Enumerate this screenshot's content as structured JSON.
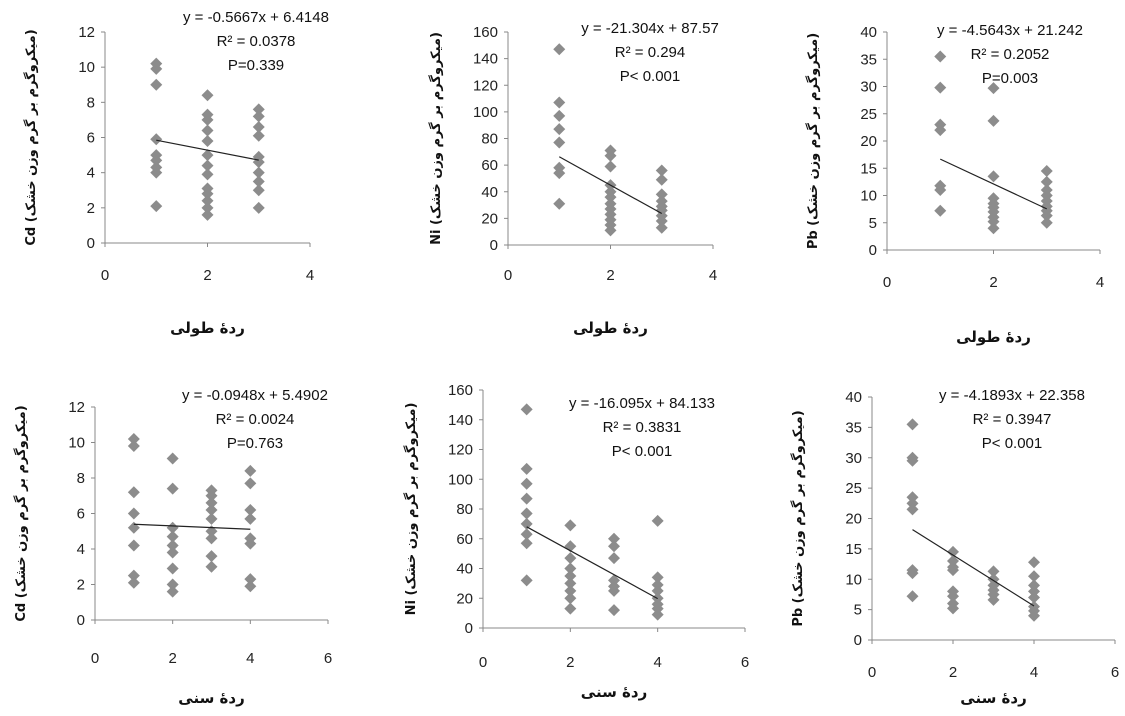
{
  "chart_data": [
    {
      "type": "scatter",
      "ylabel": "Cd (میکروگرم بر گرم وزن خشک)",
      "xlabel": "ردۀ طولی",
      "xlim": [
        0,
        4
      ],
      "xticks": [
        0,
        2,
        4
      ],
      "ylim": [
        0,
        12
      ],
      "yticks": [
        0,
        2,
        4,
        6,
        8,
        10,
        12
      ],
      "equation": "y = -0.5667x + 6.4148",
      "r2_label": "R² = 0.0378",
      "p_label": "P=0.339",
      "trend": {
        "slope": -0.5667,
        "intercept": 6.4148,
        "x_range": [
          1,
          3
        ]
      },
      "points": [
        [
          1,
          10.2
        ],
        [
          1,
          9.9
        ],
        [
          1,
          9.0
        ],
        [
          1,
          5.9
        ],
        [
          1,
          5.0
        ],
        [
          1,
          4.7
        ],
        [
          1,
          4.3
        ],
        [
          1,
          4.0
        ],
        [
          1,
          2.1
        ],
        [
          2,
          8.4
        ],
        [
          2,
          7.3
        ],
        [
          2,
          7.0
        ],
        [
          2,
          6.4
        ],
        [
          2,
          5.8
        ],
        [
          2,
          5.0
        ],
        [
          2,
          4.4
        ],
        [
          2,
          3.9
        ],
        [
          2,
          3.1
        ],
        [
          2,
          2.8
        ],
        [
          2,
          2.4
        ],
        [
          2,
          2.0
        ],
        [
          2,
          1.6
        ],
        [
          3,
          7.6
        ],
        [
          3,
          7.2
        ],
        [
          3,
          6.6
        ],
        [
          3,
          6.1
        ],
        [
          3,
          4.9
        ],
        [
          3,
          4.6
        ],
        [
          3,
          4.0
        ],
        [
          3,
          3.5
        ],
        [
          3,
          3.0
        ],
        [
          3,
          2.0
        ]
      ]
    },
    {
      "type": "scatter",
      "ylabel": "Ni (میکروگرم بر گرم وزن خشک)",
      "xlabel": "ردۀ طولی",
      "xlim": [
        0,
        4
      ],
      "xticks": [
        0,
        2,
        4
      ],
      "ylim": [
        0,
        160
      ],
      "yticks": [
        0,
        20,
        40,
        60,
        80,
        100,
        120,
        140,
        160
      ],
      "equation": "y = -21.304x + 87.57",
      "r2_label": "R² = 0.294",
      "p_label": "P< 0.001",
      "trend": {
        "slope": -21.304,
        "intercept": 87.57,
        "x_range": [
          1,
          3
        ]
      },
      "points": [
        [
          1,
          147
        ],
        [
          1,
          107
        ],
        [
          1,
          97
        ],
        [
          1,
          87
        ],
        [
          1,
          77
        ],
        [
          1,
          58
        ],
        [
          1,
          54
        ],
        [
          1,
          31
        ],
        [
          2,
          71
        ],
        [
          2,
          67
        ],
        [
          2,
          59
        ],
        [
          2,
          45
        ],
        [
          2,
          40
        ],
        [
          2,
          36
        ],
        [
          2,
          31
        ],
        [
          2,
          27
        ],
        [
          2,
          23
        ],
        [
          2,
          19
        ],
        [
          2,
          15
        ],
        [
          2,
          11
        ],
        [
          3,
          56
        ],
        [
          3,
          49
        ],
        [
          3,
          38
        ],
        [
          3,
          33
        ],
        [
          3,
          29
        ],
        [
          3,
          26
        ],
        [
          3,
          22
        ],
        [
          3,
          18
        ],
        [
          3,
          13
        ]
      ]
    },
    {
      "type": "scatter",
      "ylabel": "Pb (میکروگرم بر گرم وزن خشک)",
      "xlabel": "ردۀ طولی",
      "xlim": [
        0,
        4
      ],
      "xticks": [
        0,
        2,
        4
      ],
      "ylim": [
        0,
        40
      ],
      "yticks": [
        0,
        5,
        10,
        15,
        20,
        25,
        30,
        35,
        40
      ],
      "equation": "y = -4.5643x + 21.242",
      "r2_label": "R² = 0.2052",
      "p_label": "P=0.003",
      "trend": {
        "slope": -4.5643,
        "intercept": 21.242,
        "x_range": [
          1,
          3
        ]
      },
      "points": [
        [
          1,
          35.5
        ],
        [
          1,
          29.8
        ],
        [
          1,
          23.0
        ],
        [
          1,
          22.0
        ],
        [
          1,
          11.8
        ],
        [
          1,
          11.0
        ],
        [
          1,
          7.2
        ],
        [
          2,
          29.7
        ],
        [
          2,
          23.7
        ],
        [
          2,
          13.5
        ],
        [
          2,
          9.5
        ],
        [
          2,
          8.5
        ],
        [
          2,
          7.8
        ],
        [
          2,
          7.0
        ],
        [
          2,
          6.0
        ],
        [
          2,
          5.2
        ],
        [
          2,
          4.0
        ],
        [
          3,
          14.5
        ],
        [
          3,
          12.5
        ],
        [
          3,
          11.0
        ],
        [
          3,
          10.0
        ],
        [
          3,
          9.0
        ],
        [
          3,
          8.0
        ],
        [
          3,
          7.2
        ],
        [
          3,
          6.3
        ],
        [
          3,
          5.0
        ]
      ]
    },
    {
      "type": "scatter",
      "ylabel": "Cd (میکروگرم بر گرم وزن خشک)",
      "xlabel": "ردۀ سنی",
      "xlim": [
        0,
        6
      ],
      "xticks": [
        0,
        2,
        4,
        6
      ],
      "ylim": [
        0,
        12
      ],
      "yticks": [
        0,
        2,
        4,
        6,
        8,
        10,
        12
      ],
      "equation": "y = -0.0948x + 5.4902",
      "r2_label": "R² = 0.0024",
      "p_label": "P=0.763",
      "trend": {
        "slope": -0.0948,
        "intercept": 5.4902,
        "x_range": [
          1,
          4
        ]
      },
      "points": [
        [
          1,
          10.2
        ],
        [
          1,
          9.8
        ],
        [
          1,
          7.2
        ],
        [
          1,
          6.0
        ],
        [
          1,
          5.2
        ],
        [
          1,
          4.2
        ],
        [
          1,
          2.5
        ],
        [
          1,
          2.1
        ],
        [
          2,
          9.1
        ],
        [
          2,
          7.4
        ],
        [
          2,
          5.2
        ],
        [
          2,
          4.7
        ],
        [
          2,
          4.2
        ],
        [
          2,
          3.8
        ],
        [
          2,
          2.9
        ],
        [
          2,
          2.0
        ],
        [
          2,
          1.6
        ],
        [
          3,
          7.3
        ],
        [
          3,
          7.0
        ],
        [
          3,
          6.6
        ],
        [
          3,
          6.2
        ],
        [
          3,
          5.7
        ],
        [
          3,
          5.0
        ],
        [
          3,
          4.6
        ],
        [
          3,
          3.6
        ],
        [
          3,
          3.0
        ],
        [
          4,
          8.4
        ],
        [
          4,
          7.7
        ],
        [
          4,
          6.2
        ],
        [
          4,
          5.7
        ],
        [
          4,
          4.6
        ],
        [
          4,
          4.3
        ],
        [
          4,
          2.3
        ],
        [
          4,
          1.9
        ]
      ]
    },
    {
      "type": "scatter",
      "ylabel": "Ni (میکروگرم بر گرم وزن خشک)",
      "xlabel": "ردۀ سنی",
      "xlim": [
        0,
        6
      ],
      "xticks": [
        0,
        2,
        4,
        6
      ],
      "ylim": [
        0,
        160
      ],
      "yticks": [
        0,
        20,
        40,
        60,
        80,
        100,
        120,
        140,
        160
      ],
      "equation": "y = -16.095x + 84.133",
      "r2_label": "R² = 0.3831",
      "p_label": "P< 0.001",
      "trend": {
        "slope": -16.095,
        "intercept": 84.133,
        "x_range": [
          1,
          4
        ]
      },
      "points": [
        [
          1,
          147
        ],
        [
          1,
          107
        ],
        [
          1,
          97
        ],
        [
          1,
          87
        ],
        [
          1,
          77
        ],
        [
          1,
          70
        ],
        [
          1,
          63
        ],
        [
          1,
          57
        ],
        [
          1,
          32
        ],
        [
          2,
          69
        ],
        [
          2,
          55
        ],
        [
          2,
          47
        ],
        [
          2,
          40
        ],
        [
          2,
          35
        ],
        [
          2,
          30
        ],
        [
          2,
          25
        ],
        [
          2,
          20
        ],
        [
          2,
          13
        ],
        [
          3,
          60
        ],
        [
          3,
          55
        ],
        [
          3,
          47
        ],
        [
          3,
          32
        ],
        [
          3,
          28
        ],
        [
          3,
          25
        ],
        [
          3,
          12
        ],
        [
          4,
          72
        ],
        [
          4,
          34
        ],
        [
          4,
          29
        ],
        [
          4,
          25
        ],
        [
          4,
          20
        ],
        [
          4,
          16
        ],
        [
          4,
          13
        ],
        [
          4,
          9
        ]
      ]
    },
    {
      "type": "scatter",
      "ylabel": "Pb (میکروگرم بر گرم وزن خشک)",
      "xlabel": "ردۀ سنی",
      "xlim": [
        0,
        6
      ],
      "xticks": [
        0,
        2,
        4,
        6
      ],
      "ylim": [
        0,
        40
      ],
      "yticks": [
        0,
        5,
        10,
        15,
        20,
        25,
        30,
        35,
        40
      ],
      "equation": "y = -4.1893x + 22.358",
      "r2_label": "R² = 0.3947",
      "p_label": "P< 0.001",
      "trend": {
        "slope": -4.1893,
        "intercept": 22.358,
        "x_range": [
          1,
          4
        ]
      },
      "points": [
        [
          1,
          35.5
        ],
        [
          1,
          30.0
        ],
        [
          1,
          29.5
        ],
        [
          1,
          23.5
        ],
        [
          1,
          22.5
        ],
        [
          1,
          21.5
        ],
        [
          1,
          11.5
        ],
        [
          1,
          11.0
        ],
        [
          1,
          7.2
        ],
        [
          2,
          14.5
        ],
        [
          2,
          13.0
        ],
        [
          2,
          12.0
        ],
        [
          2,
          11.5
        ],
        [
          2,
          8.0
        ],
        [
          2,
          7.2
        ],
        [
          2,
          6.0
        ],
        [
          2,
          5.2
        ],
        [
          3,
          11.3
        ],
        [
          3,
          10.0
        ],
        [
          3,
          9.0
        ],
        [
          3,
          8.2
        ],
        [
          3,
          7.5
        ],
        [
          3,
          6.6
        ],
        [
          4,
          12.8
        ],
        [
          4,
          10.5
        ],
        [
          4,
          9.0
        ],
        [
          4,
          8.0
        ],
        [
          4,
          7.0
        ],
        [
          4,
          5.5
        ],
        [
          4,
          4.8
        ],
        [
          4,
          4.0
        ]
      ]
    }
  ]
}
